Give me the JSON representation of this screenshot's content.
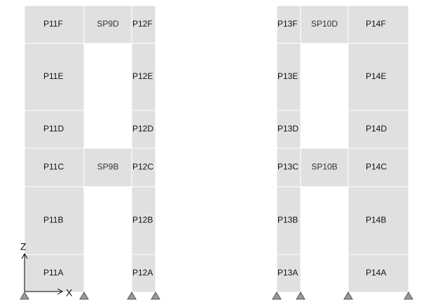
{
  "left_frame": {
    "pier_a": [
      "P11F",
      "P11E",
      "P11D",
      "P11C",
      "P11B",
      "P11A"
    ],
    "spandrels": [
      "SP9D",
      "SP9B"
    ],
    "pier_b": [
      "P12F",
      "P12E",
      "P12D",
      "P12C",
      "P12B",
      "P12A"
    ]
  },
  "right_frame": {
    "pier_a": [
      "P13F",
      "P13E",
      "P13D",
      "P13C",
      "P13B",
      "P13A"
    ],
    "spandrels": [
      "SP10D",
      "SP10B"
    ],
    "pier_b": [
      "P14F",
      "P14E",
      "P14D",
      "P14C",
      "P14B",
      "P14A"
    ]
  },
  "axes": {
    "z": "Z",
    "x": "X"
  }
}
